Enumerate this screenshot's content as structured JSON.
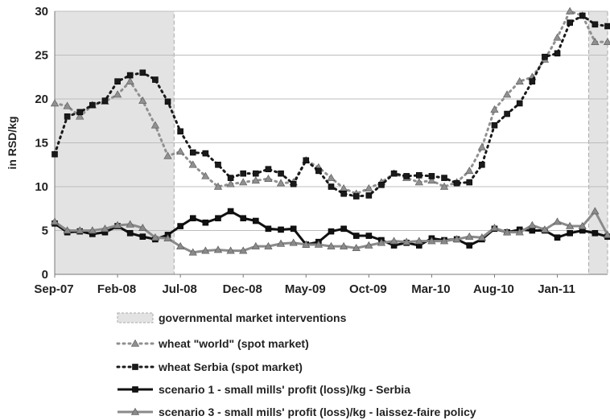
{
  "chart_data": {
    "type": "line",
    "ylabel": "in RSD/kg",
    "xlabel": "",
    "ylim": [
      0,
      30
    ],
    "yticks": [
      0,
      5,
      10,
      15,
      20,
      25,
      30
    ],
    "xtick_labels": [
      {
        "label": "Sep-07",
        "index": 0
      },
      {
        "label": "Feb-08",
        "index": 5
      },
      {
        "label": "Jul-08",
        "index": 10
      },
      {
        "label": "Dec-08",
        "index": 15
      },
      {
        "label": "May-09",
        "index": 20
      },
      {
        "label": "Oct-09",
        "index": 25
      },
      {
        "label": "Mar-10",
        "index": 30
      },
      {
        "label": "Aug-10",
        "index": 35
      },
      {
        "label": "Jan-11",
        "index": 40
      }
    ],
    "x": [
      "Sep-07",
      "Oct-07",
      "Nov-07",
      "Dec-07",
      "Jan-08",
      "Feb-08",
      "Mar-08",
      "Apr-08",
      "May-08",
      "Jun-08",
      "Jul-08",
      "Aug-08",
      "Sep-08",
      "Oct-08",
      "Nov-08",
      "Dec-08",
      "Jan-09",
      "Feb-09",
      "Mar-09",
      "Apr-09",
      "May-09",
      "Jun-09",
      "Jul-09",
      "Aug-09",
      "Sep-09",
      "Oct-09",
      "Nov-09",
      "Dec-09",
      "Jan-10",
      "Feb-10",
      "Mar-10",
      "Apr-10",
      "May-10",
      "Jun-10",
      "Jul-10",
      "Aug-10",
      "Sep-10",
      "Oct-10",
      "Nov-10",
      "Dec-10",
      "Jan-11",
      "Feb-11",
      "Mar-11",
      "Apr-11",
      "May-11"
    ],
    "shaded_regions": [
      {
        "label": "governmental market interventions",
        "from": "Sep-07",
        "to": "Jun-08"
      },
      {
        "label": "governmental market interventions",
        "from": "Apr-11",
        "to": "May-11"
      }
    ],
    "series": [
      {
        "name": "wheat \"world\" (spot market)",
        "style": "dotted",
        "marker": "triangle",
        "color": "#909090",
        "values": [
          19.5,
          19.2,
          18.0,
          19.3,
          19.7,
          20.5,
          22.0,
          19.8,
          17.0,
          13.5,
          14.0,
          12.5,
          11.2,
          10.0,
          10.3,
          10.5,
          10.7,
          10.9,
          10.4,
          10.5,
          13.0,
          12.2,
          11.0,
          9.8,
          9.2,
          9.8,
          10.5,
          11.5,
          11.0,
          10.5,
          10.7,
          10.0,
          10.5,
          11.8,
          14.5,
          18.8,
          20.5,
          22.0,
          22.5,
          24.5,
          27.0,
          30.0,
          29.5,
          26.5,
          26.5
        ]
      },
      {
        "name": "wheat Serbia (spot market)",
        "style": "dotted",
        "marker": "square",
        "color": "#1a1a1a",
        "values": [
          13.7,
          18.0,
          18.5,
          19.3,
          19.8,
          22.0,
          22.7,
          23.0,
          22.2,
          19.7,
          16.3,
          13.9,
          13.8,
          12.5,
          11.0,
          11.5,
          11.5,
          12.0,
          11.5,
          10.3,
          13.0,
          11.8,
          10.0,
          9.2,
          8.9,
          9.0,
          10.2,
          11.5,
          11.2,
          11.3,
          11.2,
          11.0,
          10.4,
          10.5,
          12.5,
          17.0,
          18.3,
          19.5,
          22.0,
          24.8,
          25.2,
          28.7,
          29.5,
          28.5,
          28.3
        ]
      },
      {
        "name": "scenario 1 - small mills' profit (loss)/kg - Serbia",
        "style": "solid",
        "marker": "square",
        "color": "#111111",
        "values": [
          5.8,
          4.8,
          4.9,
          4.6,
          4.8,
          5.5,
          4.7,
          4.3,
          4.0,
          4.5,
          5.5,
          6.4,
          5.9,
          6.4,
          7.2,
          6.4,
          6.1,
          5.2,
          5.1,
          5.2,
          3.4,
          3.7,
          4.9,
          5.2,
          4.4,
          4.4,
          3.9,
          3.3,
          3.6,
          3.3,
          4.1,
          3.9,
          4.0,
          3.3,
          4.0,
          5.2,
          4.8,
          5.1,
          5.0,
          5.0,
          4.2,
          4.7,
          5.0,
          4.7,
          4.3
        ]
      },
      {
        "name": "scenario 3 - small mills' profit (loss)/kg - laissez-faire policy",
        "style": "solid",
        "marker": "triangle",
        "color": "#8a8a8a",
        "values": [
          6.0,
          5.0,
          5.0,
          5.0,
          5.2,
          5.6,
          5.7,
          5.3,
          4.2,
          4.1,
          3.2,
          2.5,
          2.7,
          2.8,
          2.7,
          2.7,
          3.2,
          3.2,
          3.5,
          3.6,
          3.4,
          3.4,
          3.2,
          3.2,
          3.0,
          3.3,
          3.6,
          3.8,
          3.7,
          3.8,
          3.8,
          3.8,
          4.0,
          4.3,
          4.2,
          5.3,
          4.8,
          4.8,
          5.6,
          5.1,
          6.0,
          5.5,
          5.5,
          7.2,
          4.5
        ]
      }
    ],
    "legend": {
      "placement": "bottom"
    },
    "grid": true
  },
  "legend_items": [
    {
      "label": "governmental market interventions"
    },
    {
      "label": "wheat \"world\" (spot market)"
    },
    {
      "label": "wheat Serbia (spot market)"
    },
    {
      "label": "scenario 1 - small mills' profit (loss)/kg - Serbia"
    },
    {
      "label": "scenario 3 - small mills' profit (loss)/kg - laissez-faire policy"
    }
  ],
  "colors": {
    "shade": "#e3e3e3",
    "shade_border": "#a8a8a8",
    "grid": "#bdbdbd",
    "axis": "#7a7a7a"
  }
}
